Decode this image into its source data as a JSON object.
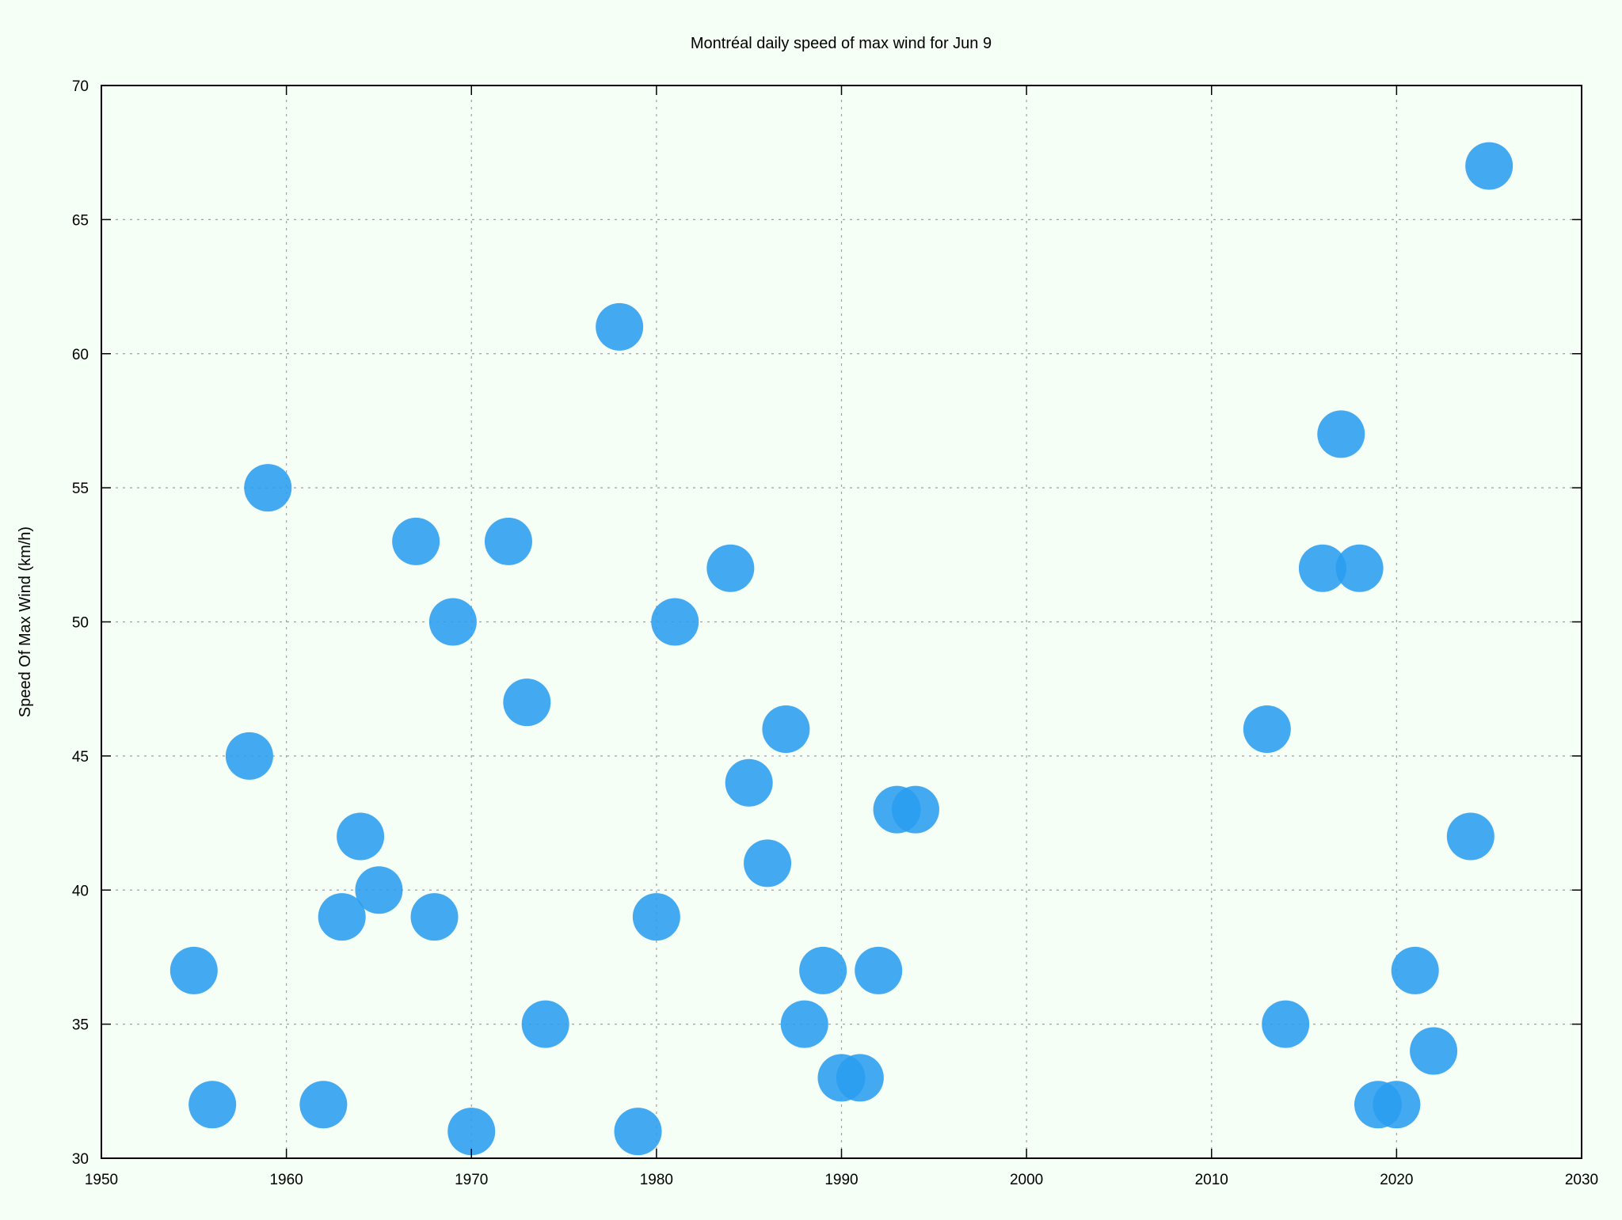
{
  "chart_data": {
    "type": "scatter",
    "title": "Montréal daily speed of max wind for Jun 9",
    "xlabel": "",
    "ylabel": "Speed Of Max Wind (km/h)",
    "xlim": [
      1950,
      2030
    ],
    "ylim": [
      30,
      70
    ],
    "xticks": [
      1950,
      1960,
      1970,
      1980,
      1990,
      2000,
      2010,
      2020,
      2030
    ],
    "yticks": [
      30,
      35,
      40,
      45,
      50,
      55,
      60,
      65,
      70
    ],
    "grid": true,
    "marker_color": "#2a9df0",
    "points": [
      {
        "x": 1955,
        "y": 37
      },
      {
        "x": 1956,
        "y": 32
      },
      {
        "x": 1958,
        "y": 45
      },
      {
        "x": 1959,
        "y": 55
      },
      {
        "x": 1962,
        "y": 32
      },
      {
        "x": 1963,
        "y": 39
      },
      {
        "x": 1964,
        "y": 42
      },
      {
        "x": 1965,
        "y": 40
      },
      {
        "x": 1967,
        "y": 53
      },
      {
        "x": 1968,
        "y": 39
      },
      {
        "x": 1969,
        "y": 50
      },
      {
        "x": 1970,
        "y": 31
      },
      {
        "x": 1972,
        "y": 53
      },
      {
        "x": 1973,
        "y": 47
      },
      {
        "x": 1974,
        "y": 35
      },
      {
        "x": 1978,
        "y": 61
      },
      {
        "x": 1979,
        "y": 31
      },
      {
        "x": 1980,
        "y": 39
      },
      {
        "x": 1981,
        "y": 50
      },
      {
        "x": 1984,
        "y": 52
      },
      {
        "x": 1985,
        "y": 44
      },
      {
        "x": 1986,
        "y": 41
      },
      {
        "x": 1987,
        "y": 46
      },
      {
        "x": 1988,
        "y": 35
      },
      {
        "x": 1989,
        "y": 37
      },
      {
        "x": 1990,
        "y": 33
      },
      {
        "x": 1991,
        "y": 33
      },
      {
        "x": 1992,
        "y": 37
      },
      {
        "x": 1993,
        "y": 43
      },
      {
        "x": 1994,
        "y": 43
      },
      {
        "x": 2013,
        "y": 46
      },
      {
        "x": 2014,
        "y": 35
      },
      {
        "x": 2016,
        "y": 52
      },
      {
        "x": 2017,
        "y": 57
      },
      {
        "x": 2018,
        "y": 52
      },
      {
        "x": 2019,
        "y": 32
      },
      {
        "x": 2020,
        "y": 32
      },
      {
        "x": 2021,
        "y": 37
      },
      {
        "x": 2022,
        "y": 34
      },
      {
        "x": 2024,
        "y": 42
      },
      {
        "x": 2025,
        "y": 67
      }
    ]
  }
}
